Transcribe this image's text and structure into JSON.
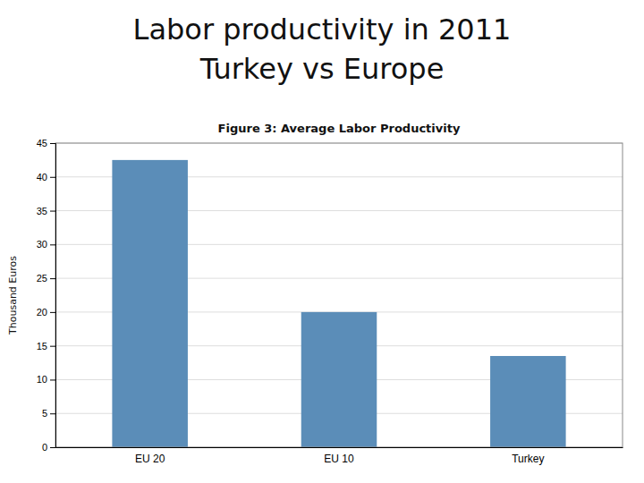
{
  "chart_data": {
    "type": "bar",
    "title": [
      "Labor productivity in 2011",
      "Turkey vs Europe"
    ],
    "subtitle": "Figure 3: Average Labor Productivity",
    "ylabel": "Thousand Euros",
    "categories": [
      "EU 20",
      "EU 10",
      "Turkey"
    ],
    "values": [
      42.5,
      20.0,
      13.5
    ],
    "color": "#5B8DB8",
    "ylim": [
      0,
      45
    ],
    "yticks": [
      0,
      5,
      10,
      15,
      20,
      25,
      30,
      35,
      40,
      45
    ],
    "grid": true
  }
}
